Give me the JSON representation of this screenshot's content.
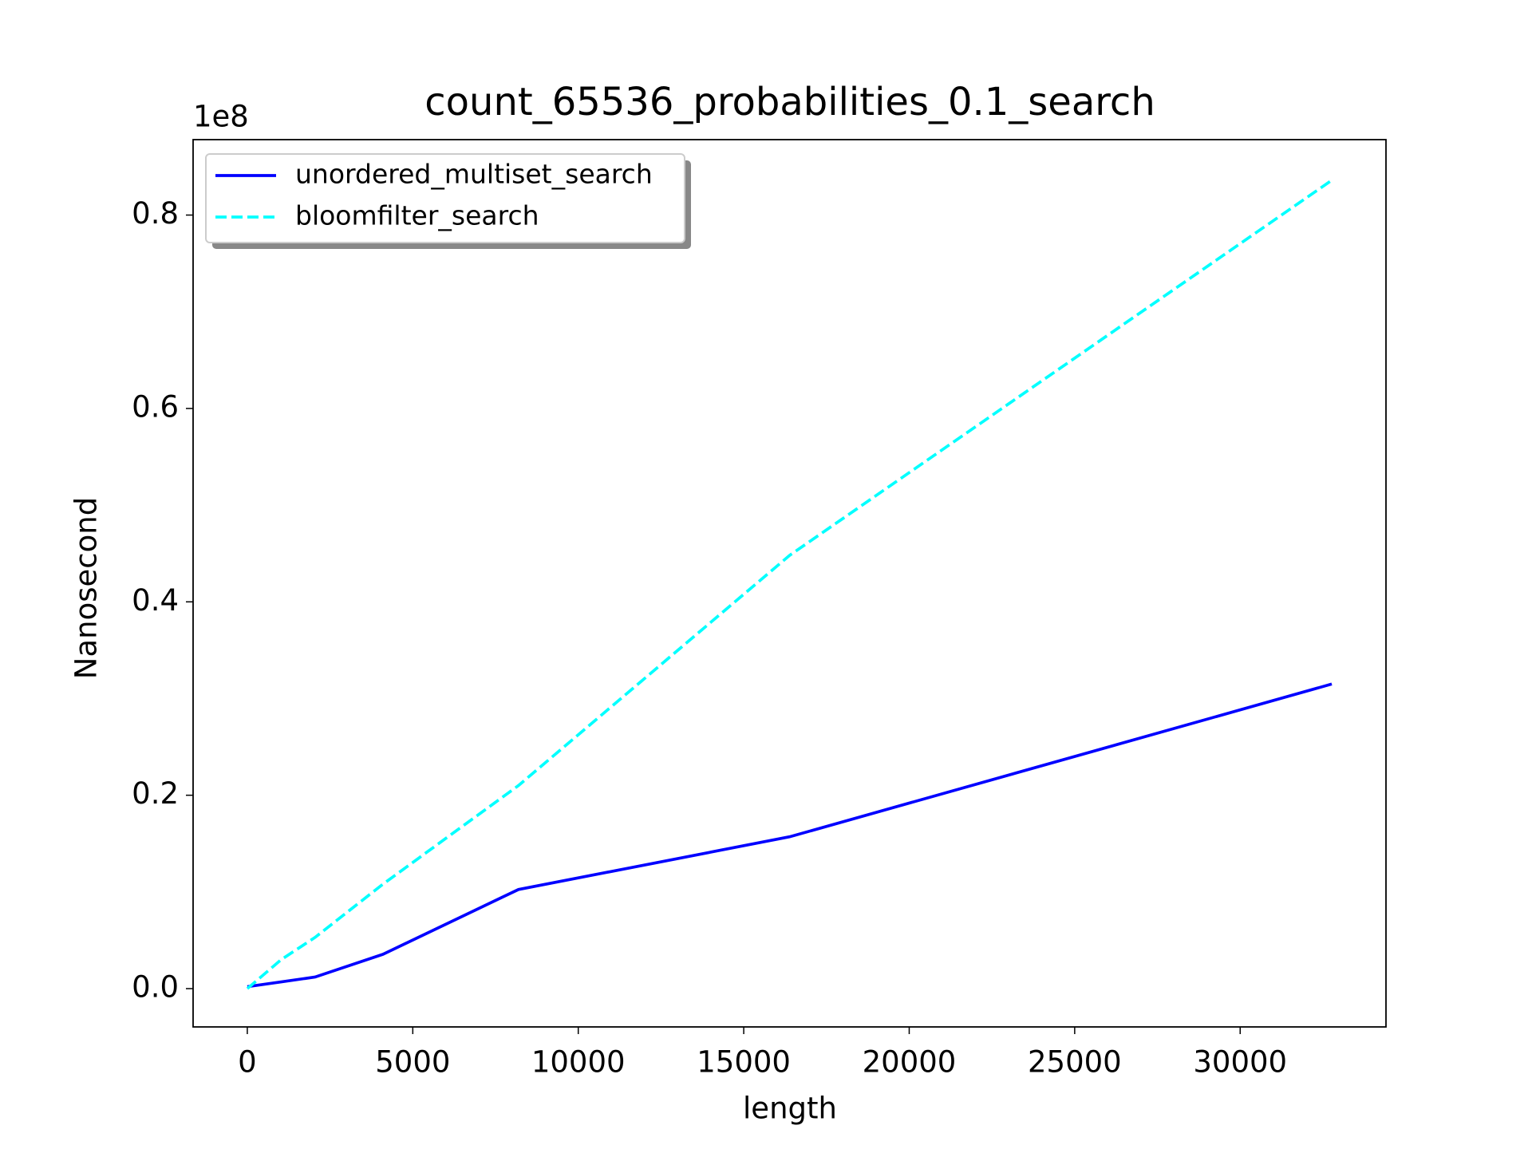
{
  "chart_data": {
    "type": "line",
    "title": "count_65536_probabilities_0.1_search",
    "x_label": "length",
    "y_label": "Nanosecond",
    "offset_label": "1e8",
    "x": [
      1,
      1024,
      2048,
      4096,
      8192,
      16384,
      32768
    ],
    "series": [
      {
        "name": "unordered_multiset_search",
        "color": "#0000ff",
        "dash": false,
        "values": [
          0.002,
          0.007,
          0.012,
          0.0355,
          0.1025,
          0.157,
          0.315
        ]
      },
      {
        "name": "bloomfilter_search",
        "color": "#00ffff",
        "dash": true,
        "values": [
          0.0,
          0.03,
          0.053,
          0.108,
          0.21,
          0.448,
          0.836
        ]
      }
    ],
    "xlim": [
      -1638,
      34406
    ],
    "ylim": [
      -0.0396,
      0.878
    ],
    "xticks": [
      0,
      5000,
      10000,
      15000,
      20000,
      25000,
      30000
    ],
    "yticks": [
      {
        "value": 0,
        "label": "0.0"
      },
      0.2,
      0.4,
      0.6,
      0.8
    ],
    "legend": "upper-left"
  }
}
